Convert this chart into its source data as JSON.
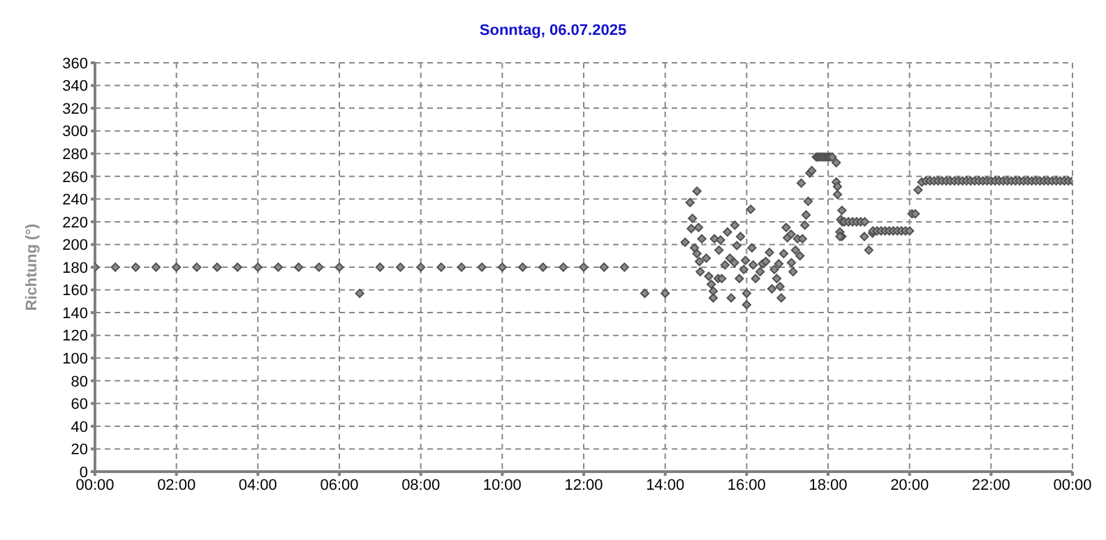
{
  "chart_data": {
    "type": "scatter",
    "title": "Sonntag, 06.07.2025",
    "ylabel": "Richtung (°)",
    "x": [
      0,
      0.5,
      1,
      1.5,
      2,
      2.5,
      3,
      3.5,
      4,
      4.5,
      5,
      5.5,
      6,
      6.5,
      7,
      7.5,
      8,
      8.5,
      9,
      9.5,
      10,
      10.5,
      11,
      11.5,
      12,
      12.5,
      13,
      13.5,
      14,
      14.49,
      14.61,
      14.78,
      14.67,
      14.64,
      14.82,
      14.72,
      14.9,
      14.78,
      14.84,
      15.01,
      14.86,
      15.07,
      15.13,
      15.18,
      15.18,
      15.3,
      15.21,
      15.36,
      15.32,
      15.53,
      15.71,
      15.47,
      15.39,
      15.59,
      15.62,
      15.7,
      15.76,
      15.85,
      15.82,
      15.97,
      15.93,
      16,
      16,
      16.1,
      16.13,
      16.16,
      16.22,
      16.33,
      16.39,
      16.47,
      16.56,
      16.62,
      16.68,
      16.74,
      16.79,
      16.85,
      16.82,
      16.91,
      16.97,
      17,
      17.09,
      17.1,
      17.14,
      17.2,
      17.25,
      17.31,
      17.34,
      17.37,
      17.43,
      17.46,
      17.51,
      17.55,
      17.6,
      17.71,
      17.75,
      17.8,
      17.85,
      17.9,
      17.95,
      18,
      18.05,
      18.1,
      18.2,
      18.2,
      18.23,
      18.23,
      18.34,
      18.31,
      18.29,
      18.34,
      18.29,
      18.35,
      18.4,
      18.5,
      18.6,
      18.7,
      18.8,
      18.9,
      18.89,
      19,
      19.09,
      19.1,
      19.2,
      19.3,
      19.4,
      19.5,
      19.6,
      19.7,
      19.8,
      19.9,
      20,
      20.06,
      20.14,
      20.21,
      20.3,
      20.4,
      20.5,
      20.6,
      20.7,
      20.8,
      20.9,
      21,
      21.1,
      21.2,
      21.3,
      21.4,
      21.5,
      21.6,
      21.7,
      21.8,
      21.9,
      22,
      22.1,
      22.2,
      22.3,
      22.4,
      22.5,
      22.6,
      22.7,
      22.8,
      22.9,
      23,
      23.1,
      23.2,
      23.3,
      23.4,
      23.5,
      23.6,
      23.7,
      23.8,
      23.9,
      24
    ],
    "values": [
      180,
      180,
      180,
      180,
      180,
      180,
      180,
      180,
      180,
      180,
      180,
      180,
      180,
      157,
      180,
      180,
      180,
      180,
      180,
      180,
      180,
      180,
      180,
      180,
      180,
      180,
      180,
      157,
      157,
      202,
      237,
      247,
      223,
      214,
      215,
      197,
      205,
      192,
      185,
      188,
      176,
      172,
      165,
      153,
      159,
      170,
      205,
      204,
      195,
      211,
      217,
      182,
      170,
      188,
      153,
      184,
      199,
      207,
      170,
      186,
      178,
      157,
      147,
      231,
      197,
      182,
      170,
      176,
      183,
      185,
      193,
      161,
      178,
      170,
      183,
      153,
      163,
      192,
      215,
      206,
      209,
      184,
      176,
      195,
      205,
      190,
      254,
      205,
      217,
      226,
      238,
      263,
      265,
      277,
      277,
      277,
      277,
      277,
      277,
      277,
      277,
      277,
      272,
      255,
      251,
      244,
      230,
      222,
      211,
      207,
      207,
      220,
      220,
      220,
      220,
      220,
      220,
      220,
      207,
      195,
      210,
      212,
      212,
      212,
      212,
      212,
      212,
      212,
      212,
      212,
      212,
      227,
      227,
      248,
      255,
      256,
      256,
      256,
      256,
      256,
      256,
      256,
      256,
      256,
      256,
      256,
      256,
      256,
      256,
      256,
      256,
      256,
      256,
      256,
      256,
      256,
      256,
      256,
      256,
      256,
      256,
      256,
      256,
      256,
      256,
      256,
      256,
      256,
      256,
      256,
      256,
      256
    ],
    "color": "#505050",
    "marker": "diamond",
    "grid": true,
    "xlim": [
      0,
      24
    ],
    "xticks": [
      {
        "value": 0,
        "label": "00:00"
      },
      {
        "value": 2,
        "label": "02:00"
      },
      {
        "value": 4,
        "label": "04:00"
      },
      {
        "value": 6,
        "label": "06:00"
      },
      {
        "value": 8,
        "label": "08:00"
      },
      {
        "value": 10,
        "label": "10:00"
      },
      {
        "value": 12,
        "label": "12:00"
      },
      {
        "value": 14,
        "label": "14:00"
      },
      {
        "value": 16,
        "label": "16:00"
      },
      {
        "value": 18,
        "label": "18:00"
      },
      {
        "value": 20,
        "label": "20:00"
      },
      {
        "value": 22,
        "label": "22:00"
      },
      {
        "value": 24,
        "label": "00:00"
      }
    ],
    "ylim": [
      0,
      360
    ],
    "yticks": [
      0,
      20,
      40,
      60,
      80,
      100,
      120,
      140,
      160,
      180,
      200,
      220,
      240,
      260,
      280,
      300,
      320,
      340,
      360
    ]
  }
}
